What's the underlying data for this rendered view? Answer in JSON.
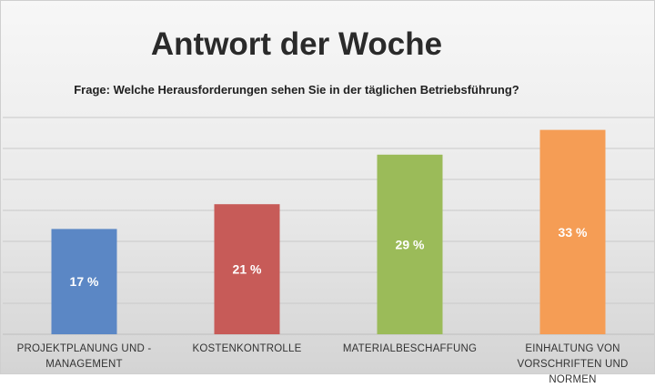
{
  "title": "Antwort der Woche",
  "subtitle": "Frage: Welche Herausforderungen sehen Sie in der täglichen Betriebsführung?",
  "chart_data": {
    "type": "bar",
    "title": "Antwort der Woche",
    "subtitle": "Frage: Welche Herausforderungen sehen Sie in der täglichen Betriebsführung?",
    "categories": [
      [
        "PROJEKTPLANUNG UND -",
        "MANAGEMENT"
      ],
      [
        "KOSTENKONTROLLE"
      ],
      [
        "MATERIALBESCHAFFUNG"
      ],
      [
        "EINHALTUNG VON",
        "VORSCHRIFTEN UND NORMEN"
      ]
    ],
    "values": [
      17,
      21,
      29,
      33
    ],
    "data_labels": [
      "17 %",
      "21 %",
      "29 %",
      "33 %"
    ],
    "colors": [
      "#5b87c5",
      "#c75b58",
      "#9bbb59",
      "#f59d55"
    ],
    "ylim": [
      0,
      35
    ],
    "grid": true,
    "legend": "none",
    "xlabel": "",
    "ylabel": ""
  }
}
